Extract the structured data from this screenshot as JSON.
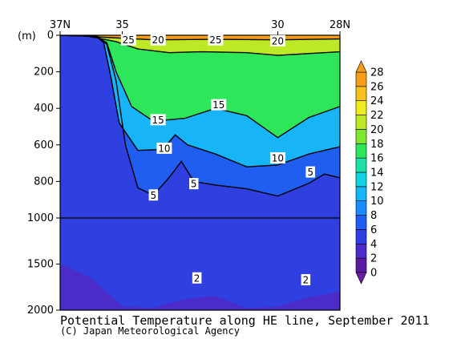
{
  "caption": "Potential Temperature along HE line, September 2011",
  "credit": "(C) Japan Meteorological Agency",
  "chart_data": {
    "type": "heatmap",
    "title": "Potential Temperature along HE line, September 2011",
    "x_axis": {
      "ticks": [
        "37N",
        "35",
        "30",
        "28N"
      ],
      "tick_values": [
        37,
        35,
        30,
        28
      ],
      "range": [
        37,
        28
      ]
    },
    "y_axis": {
      "unit_label": "(m)",
      "ticks": [
        "0",
        "200",
        "400",
        "600",
        "800",
        "1000",
        "1500",
        "2000"
      ],
      "tick_values": [
        0,
        200,
        400,
        600,
        800,
        1000,
        1500,
        2000
      ],
      "range": [
        0,
        2000
      ],
      "scale_break_at": 1000
    },
    "colorbar": {
      "levels": [
        0,
        2,
        4,
        6,
        8,
        10,
        12,
        14,
        16,
        18,
        20,
        22,
        24,
        26,
        28
      ],
      "labels": [
        "0",
        "2",
        "4",
        "6",
        "8",
        "10",
        "12",
        "14",
        "16",
        "18",
        "20",
        "22",
        "24",
        "26",
        "28"
      ],
      "colors": [
        "#5a1aa0",
        "#4b2cc8",
        "#2f3fe0",
        "#1f5ef0",
        "#1a8cff",
        "#17b4f7",
        "#12d4e6",
        "#1ee0a6",
        "#2ee65a",
        "#7ee82e",
        "#bde825",
        "#f0ea22",
        "#f7c01e",
        "#f59d1a"
      ],
      "extends": "both"
    },
    "contour_labels": [
      {
        "text": "25",
        "lat": 34.8,
        "depth": 25
      },
      {
        "text": "20",
        "lat": 33.85,
        "depth": 25
      },
      {
        "text": "25",
        "lat": 32.0,
        "depth": 25
      },
      {
        "text": "20",
        "lat": 30.0,
        "depth": 30
      },
      {
        "text": "15",
        "lat": 33.85,
        "depth": 462
      },
      {
        "text": "15",
        "lat": 31.9,
        "depth": 380
      },
      {
        "text": "10",
        "lat": 33.65,
        "depth": 618
      },
      {
        "text": "10",
        "lat": 30.0,
        "depth": 671
      },
      {
        "text": "5",
        "lat": 32.7,
        "depth": 812
      },
      {
        "text": "5",
        "lat": 34.0,
        "depth": 874
      },
      {
        "text": "5",
        "lat": 28.95,
        "depth": 748
      },
      {
        "text": "2",
        "lat": 32.6,
        "depth": 1650
      },
      {
        "text": "2",
        "lat": 29.1,
        "depth": 1670
      }
    ],
    "isotherms": [
      {
        "value": 25,
        "points": [
          [
            37,
            0
          ],
          [
            36.3,
            3
          ],
          [
            35.5,
            12
          ],
          [
            34,
            25
          ],
          [
            32,
            22
          ],
          [
            30,
            25
          ],
          [
            28,
            20
          ]
        ]
      },
      {
        "value": 20,
        "points": [
          [
            37,
            0
          ],
          [
            36.1,
            5
          ],
          [
            35.2,
            35
          ],
          [
            34.5,
            75
          ],
          [
            33.5,
            95
          ],
          [
            32.5,
            90
          ],
          [
            31,
            95
          ],
          [
            30,
            110
          ],
          [
            28.5,
            95
          ],
          [
            28,
            90
          ]
        ]
      },
      {
        "value": 15,
        "points": [
          [
            37,
            0
          ],
          [
            35.9,
            5
          ],
          [
            35.5,
            40
          ],
          [
            35.2,
            200
          ],
          [
            34.7,
            390
          ],
          [
            34,
            470
          ],
          [
            33,
            455
          ],
          [
            32,
            400
          ],
          [
            31,
            440
          ],
          [
            30,
            560
          ],
          [
            29,
            450
          ],
          [
            28,
            390
          ]
        ]
      },
      {
        "value": 10,
        "points": [
          [
            37,
            0
          ],
          [
            35.85,
            5
          ],
          [
            35.6,
            40
          ],
          [
            35.4,
            200
          ],
          [
            35.1,
            480
          ],
          [
            34.5,
            630
          ],
          [
            33.7,
            625
          ],
          [
            33.3,
            545
          ],
          [
            32.9,
            600
          ],
          [
            32,
            650
          ],
          [
            31,
            720
          ],
          [
            30,
            710
          ],
          [
            29,
            650
          ],
          [
            28,
            610
          ]
        ]
      },
      {
        "value": 5,
        "points": [
          [
            37,
            0
          ],
          [
            35.8,
            5
          ],
          [
            35.5,
            50
          ],
          [
            35.2,
            250
          ],
          [
            34.9,
            600
          ],
          [
            34.5,
            835
          ],
          [
            34,
            875
          ],
          [
            33.5,
            780
          ],
          [
            33.1,
            690
          ],
          [
            32.7,
            800
          ],
          [
            32,
            820
          ],
          [
            31,
            840
          ],
          [
            30,
            880
          ],
          [
            29,
            810
          ],
          [
            28.5,
            760
          ],
          [
            28,
            780
          ]
        ]
      }
    ]
  }
}
